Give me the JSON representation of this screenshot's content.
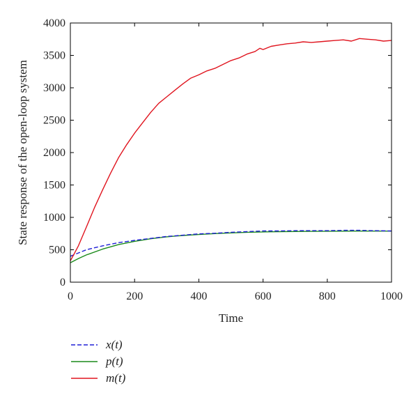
{
  "chart_data": {
    "type": "line",
    "title": "",
    "xlabel": "Time",
    "ylabel": "State response of the open-loop system",
    "xlim": [
      0,
      1000
    ],
    "ylim": [
      0,
      4000
    ],
    "xticks": [
      0,
      200,
      400,
      600,
      800,
      1000
    ],
    "yticks": [
      0,
      500,
      1000,
      1500,
      2000,
      2500,
      3000,
      3500,
      4000
    ],
    "grid": false,
    "legend_position": "below-left",
    "series": [
      {
        "name": "x(t)",
        "color": "#1f1fd6",
        "style": "dashed",
        "x": [
          0,
          25,
          50,
          100,
          150,
          200,
          250,
          300,
          350,
          400,
          450,
          500,
          550,
          600,
          650,
          700,
          750,
          800,
          850,
          900,
          950,
          1000
        ],
        "y": [
          400,
          450,
          500,
          560,
          610,
          645,
          675,
          705,
          725,
          745,
          755,
          770,
          780,
          790,
          790,
          795,
          795,
          795,
          800,
          800,
          795,
          790
        ]
      },
      {
        "name": "p(t)",
        "color": "#1a8a1a",
        "style": "solid",
        "x": [
          0,
          25,
          50,
          100,
          150,
          200,
          250,
          300,
          350,
          400,
          450,
          500,
          550,
          600,
          650,
          700,
          750,
          800,
          850,
          900,
          950,
          1000
        ],
        "y": [
          300,
          365,
          420,
          510,
          580,
          630,
          670,
          700,
          720,
          735,
          750,
          760,
          770,
          775,
          780,
          782,
          784,
          786,
          787,
          788,
          788,
          788
        ]
      },
      {
        "name": "m(t)",
        "color": "#e0141e",
        "style": "solid",
        "x": [
          0,
          10,
          25,
          50,
          75,
          100,
          125,
          150,
          175,
          200,
          225,
          250,
          275,
          300,
          325,
          350,
          375,
          400,
          425,
          450,
          475,
          500,
          525,
          550,
          575,
          590,
          600,
          625,
          650,
          675,
          700,
          725,
          750,
          775,
          800,
          825,
          850,
          875,
          900,
          925,
          950,
          975,
          1000
        ],
        "y": [
          330,
          420,
          560,
          850,
          1150,
          1420,
          1680,
          1920,
          2120,
          2300,
          2460,
          2620,
          2760,
          2860,
          2960,
          3060,
          3150,
          3200,
          3260,
          3300,
          3360,
          3420,
          3460,
          3520,
          3560,
          3610,
          3590,
          3640,
          3660,
          3680,
          3690,
          3710,
          3700,
          3710,
          3720,
          3730,
          3740,
          3720,
          3760,
          3750,
          3740,
          3720,
          3730
        ]
      }
    ]
  }
}
